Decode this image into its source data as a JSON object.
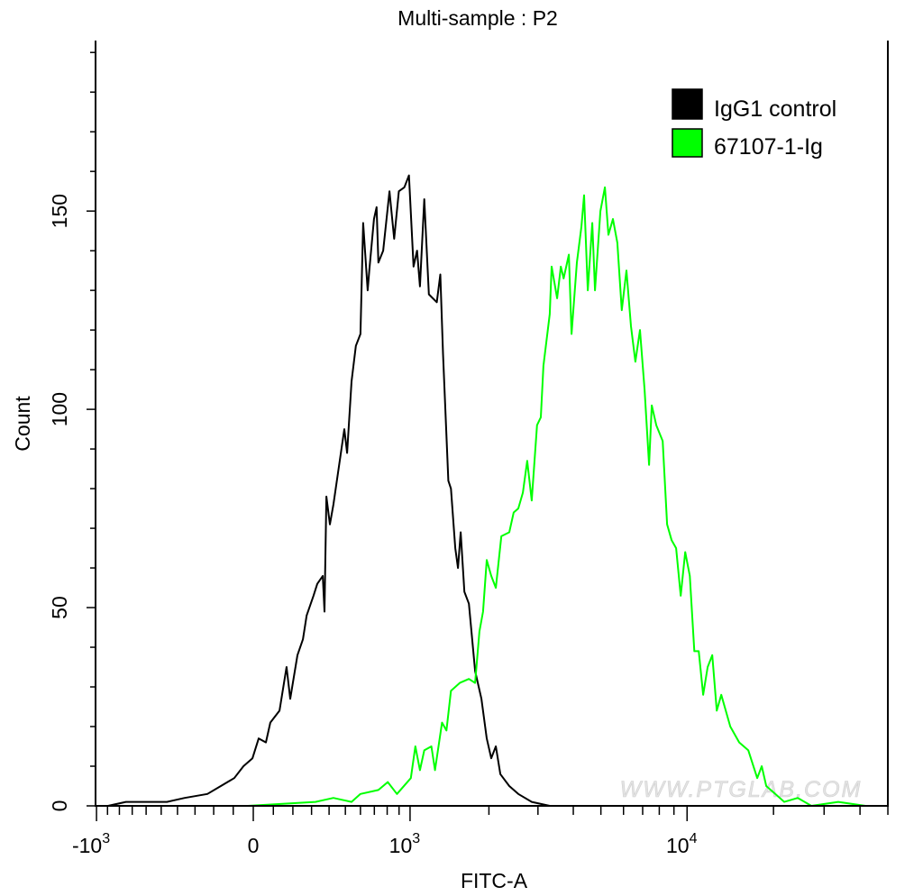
{
  "chart_data": {
    "type": "line",
    "title": "Multi-sample : P2",
    "xlabel": "FITC-A",
    "ylabel": "Count",
    "x_scale": "biexponential",
    "xlim": [
      -1000,
      50000
    ],
    "ylim": [
      0,
      193
    ],
    "x_ticks": [
      {
        "value": -1000,
        "base": "-10",
        "exp": "3"
      },
      {
        "value": 0,
        "base": "0",
        "exp": ""
      },
      {
        "value": 1000,
        "base": "10",
        "exp": "3"
      },
      {
        "value": 10000,
        "base": "10",
        "exp": "4"
      }
    ],
    "y_ticks": [
      0,
      50,
      100,
      150
    ],
    "grid": false,
    "legend_position": "top-right",
    "watermark": "WWW.PTGLAB.COM",
    "series": [
      {
        "name": "IgG1 control",
        "color": "#000000",
        "x": [
          -895,
          -748,
          -464,
          -358,
          -233,
          -163,
          -95,
          -49,
          -4,
          27,
          63,
          85,
          131,
          167,
          186,
          224,
          253,
          273,
          311,
          332,
          363,
          373,
          384,
          405,
          426,
          454,
          493,
          511,
          540,
          569,
          600,
          619,
          651,
          663,
          697,
          717,
          731,
          768,
          819,
          858,
          898,
          947,
          990,
          1033,
          1068,
          1096,
          1141,
          1189,
          1277,
          1318,
          1349,
          1414,
          1447,
          1502,
          1537,
          1574,
          1625,
          1688,
          1780,
          1877,
          1963,
          2040,
          2119,
          2200,
          2369,
          2552,
          2850,
          3303,
          6380
        ],
        "y": [
          0,
          1,
          1,
          2,
          3,
          5,
          7,
          10,
          12,
          17,
          16,
          21,
          24,
          35,
          27,
          38,
          42,
          48,
          53,
          56,
          58,
          49,
          78,
          71,
          76,
          84,
          95,
          89,
          107,
          116,
          119,
          147,
          130,
          135,
          148,
          151,
          137,
          140,
          155,
          143,
          155,
          156,
          159,
          136,
          140,
          131,
          153,
          129,
          127,
          134,
          114,
          82,
          80,
          65,
          60,
          69,
          54,
          51,
          34,
          27,
          17,
          12,
          15,
          8,
          5,
          3,
          1,
          0,
          0
        ]
      },
      {
        "name": "67107-1-Ig",
        "color": "#00ff00",
        "x": [
          -27,
          322,
          426,
          540,
          600,
          731,
          805,
          882,
          1007,
          1051,
          1096,
          1141,
          1217,
          1257,
          1338,
          1391,
          1447,
          1561,
          1688,
          1780,
          1847,
          1903,
          1963,
          2040,
          2119,
          2219,
          2369,
          2457,
          2552,
          2651,
          2748,
          2850,
          2978,
          3070,
          3138,
          3303,
          3355,
          3508,
          3615,
          3697,
          3859,
          3945,
          4117,
          4270,
          4366,
          4497,
          4665,
          4768,
          4981,
          5164,
          5315,
          5509,
          5708,
          5915,
          6143,
          6370,
          6600,
          6850,
          7110,
          7370,
          7530,
          7810,
          8220,
          8520,
          8830,
          9160,
          9500,
          9850,
          10220,
          10600,
          10980,
          11380,
          11800,
          12240,
          12690,
          13160,
          14140,
          15190,
          16340,
          17550,
          18200,
          18870,
          20280,
          21800,
          24300,
          27100,
          33600,
          41800
        ],
        "y": [
          0,
          1,
          2,
          1,
          3,
          4,
          6,
          3,
          7,
          15,
          9,
          14,
          15,
          9,
          21,
          19,
          29,
          31,
          32,
          31,
          44,
          49,
          62,
          58,
          55,
          68,
          69,
          74,
          75,
          79,
          87,
          77,
          96,
          98,
          111,
          124,
          136,
          128,
          136,
          133,
          139,
          119,
          137,
          146,
          154,
          130,
          147,
          130,
          150,
          156,
          144,
          148,
          142,
          125,
          135,
          121,
          112,
          120,
          105,
          86,
          101,
          96,
          92,
          71,
          67,
          65,
          53,
          64,
          58,
          39,
          39,
          28,
          35,
          38,
          24,
          28,
          20,
          16,
          14,
          7,
          10,
          5,
          3,
          1,
          2,
          0,
          1,
          0
        ]
      }
    ]
  }
}
